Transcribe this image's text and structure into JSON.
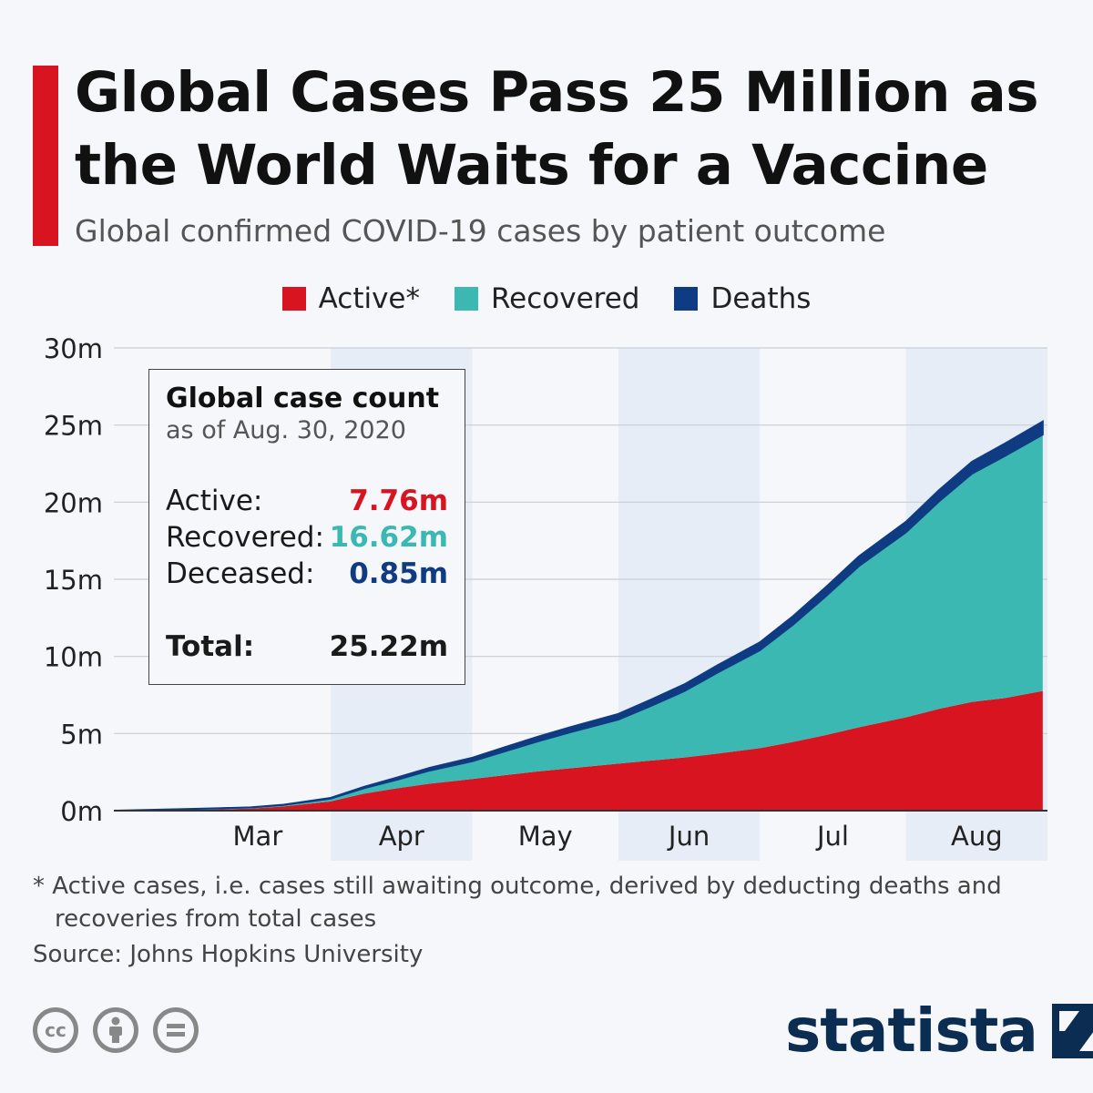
{
  "header": {
    "title_line1": "Global Cases Pass 25 Million as",
    "title_line2": "the World Waits for a Vaccine",
    "subtitle": "Global confirmed COVID-19 cases by patient outcome"
  },
  "colors": {
    "accent": "#d7141f",
    "active": "#d7141f",
    "recovered": "#3bb8b2",
    "deaths": "#0e3b82",
    "brand": "#0b2d52"
  },
  "legend": [
    {
      "label": "Active*",
      "color": "#d7141f"
    },
    {
      "label": "Recovered",
      "color": "#3bb8b2"
    },
    {
      "label": "Deaths",
      "color": "#0e3b82"
    }
  ],
  "infobox": {
    "title": "Global case count",
    "date": "as of Aug. 30, 2020",
    "rows": [
      {
        "label": "Active:",
        "value": "7.76m",
        "color": "#d7141f"
      },
      {
        "label": "Recovered:",
        "value": "16.62m",
        "color": "#3bb8b2"
      },
      {
        "label": "Deceased:",
        "value": "0.85m",
        "color": "#0e3b82"
      }
    ],
    "total_label": "Total:",
    "total_value": "25.22m"
  },
  "chart_data": {
    "type": "area",
    "stacked": true,
    "x": [
      "2020-02-15",
      "2020-03-01",
      "2020-03-08",
      "2020-03-15",
      "2020-03-22",
      "2020-04-01",
      "2020-04-08",
      "2020-04-15",
      "2020-04-22",
      "2020-05-01",
      "2020-05-08",
      "2020-05-15",
      "2020-05-22",
      "2020-06-01",
      "2020-06-08",
      "2020-06-15",
      "2020-06-22",
      "2020-07-01",
      "2020-07-08",
      "2020-07-15",
      "2020-07-22",
      "2020-08-01",
      "2020-08-08",
      "2020-08-15",
      "2020-08-22",
      "2020-08-30"
    ],
    "series": [
      {
        "name": "Active*",
        "values": [
          0.0,
          0.05,
          0.08,
          0.13,
          0.27,
          0.6,
          1.1,
          1.45,
          1.75,
          2.05,
          2.3,
          2.55,
          2.75,
          3.05,
          3.25,
          3.45,
          3.7,
          4.05,
          4.45,
          4.9,
          5.4,
          6.05,
          6.6,
          7.05,
          7.3,
          7.76
        ]
      },
      {
        "name": "Recovered",
        "values": [
          0.0,
          0.05,
          0.07,
          0.08,
          0.1,
          0.18,
          0.35,
          0.55,
          0.85,
          1.15,
          1.55,
          1.95,
          2.35,
          2.85,
          3.55,
          4.3,
          5.25,
          6.35,
          7.6,
          9.0,
          10.45,
          12.0,
          13.45,
          14.8,
          15.7,
          16.62
        ]
      },
      {
        "name": "Deaths",
        "values": [
          0.0,
          0.003,
          0.004,
          0.006,
          0.015,
          0.05,
          0.09,
          0.14,
          0.18,
          0.23,
          0.27,
          0.3,
          0.33,
          0.37,
          0.41,
          0.44,
          0.47,
          0.51,
          0.55,
          0.59,
          0.63,
          0.68,
          0.73,
          0.77,
          0.81,
          0.85
        ]
      }
    ],
    "xticks": [
      "Mar",
      "Apr",
      "May",
      "Jun",
      "Jul",
      "Aug"
    ],
    "yticks": [
      "0m",
      "5m",
      "10m",
      "15m",
      "20m",
      "25m",
      "30m"
    ],
    "ylim": [
      0,
      30
    ],
    "grid": true,
    "legend_position": "top-center"
  },
  "footnote": {
    "line1": "* Active cases, i.e. cases still awaiting outcome, derived by deducting deaths and",
    "line2": "recoveries from total cases"
  },
  "source": "Source: Johns Hopkins University",
  "branding": {
    "brand": "statista",
    "license_icons": [
      "cc-icon",
      "attribution-icon",
      "no-derivatives-icon"
    ]
  }
}
